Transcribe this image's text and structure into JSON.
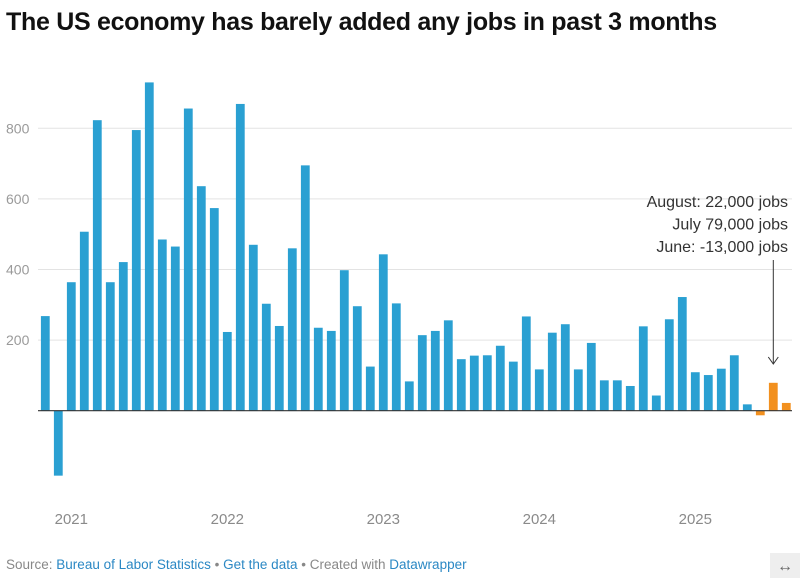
{
  "title": "The US economy has barely added any jobs in past 3 months",
  "footer": {
    "source_prefix": "Source:",
    "source_link": "Bureau of Labor Statistics",
    "separator": "•",
    "get_data": "Get the data",
    "created_with": "Created with",
    "datawrapper": "Datawrapper",
    "expand_icon": "↔"
  },
  "chart_data": {
    "type": "bar",
    "title": "The US economy has barely added any jobs in past 3 months",
    "xlabel": "",
    "ylabel": "",
    "ylim": [
      -200,
      950
    ],
    "yticks": [
      200,
      400,
      600,
      800
    ],
    "ytick_labels": [
      "200",
      "400",
      "600",
      "800"
    ],
    "grid": true,
    "xtick_labels": [
      {
        "label": "2021",
        "month": "2021-01"
      },
      {
        "label": "2022",
        "month": "2022-01"
      },
      {
        "label": "2023",
        "month": "2023-01"
      },
      {
        "label": "2024",
        "month": "2024-01"
      },
      {
        "label": "2025",
        "month": "2025-01"
      }
    ],
    "categories": [
      "2020-11",
      "2020-12",
      "2021-01",
      "2021-02",
      "2021-03",
      "2021-04",
      "2021-05",
      "2021-06",
      "2021-07",
      "2021-08",
      "2021-09",
      "2021-10",
      "2021-11",
      "2021-12",
      "2022-01",
      "2022-02",
      "2022-03",
      "2022-04",
      "2022-05",
      "2022-06",
      "2022-07",
      "2022-08",
      "2022-09",
      "2022-10",
      "2022-11",
      "2022-12",
      "2023-01",
      "2023-02",
      "2023-03",
      "2023-04",
      "2023-05",
      "2023-06",
      "2023-07",
      "2023-08",
      "2023-09",
      "2023-10",
      "2023-11",
      "2023-12",
      "2024-01",
      "2024-02",
      "2024-03",
      "2024-04",
      "2024-05",
      "2024-06",
      "2024-07",
      "2024-08",
      "2024-09",
      "2024-10",
      "2024-11",
      "2024-12",
      "2025-01",
      "2025-02",
      "2025-03",
      "2025-04",
      "2025-05",
      "2025-06",
      "2025-07",
      "2025-08"
    ],
    "values": [
      268,
      -184,
      364,
      507,
      823,
      364,
      421,
      795,
      930,
      485,
      465,
      856,
      636,
      574,
      223,
      869,
      470,
      303,
      240,
      460,
      695,
      235,
      226,
      398,
      296,
      125,
      443,
      304,
      83,
      214,
      226,
      256,
      146,
      156,
      157,
      184,
      139,
      267,
      117,
      221,
      245,
      117,
      192,
      86,
      86,
      70,
      239,
      43,
      259,
      322,
      109,
      101,
      119,
      157,
      18,
      -13,
      79,
      22
    ],
    "highlight_from": "2025-06",
    "colors": {
      "default": "#2aa0d2",
      "highlight": "#f2901e"
    },
    "annotation": {
      "lines": [
        "August: 22,000 jobs",
        "July 79,000 jobs",
        "June: -13,000 jobs"
      ],
      "points_to": "2025-07"
    }
  }
}
